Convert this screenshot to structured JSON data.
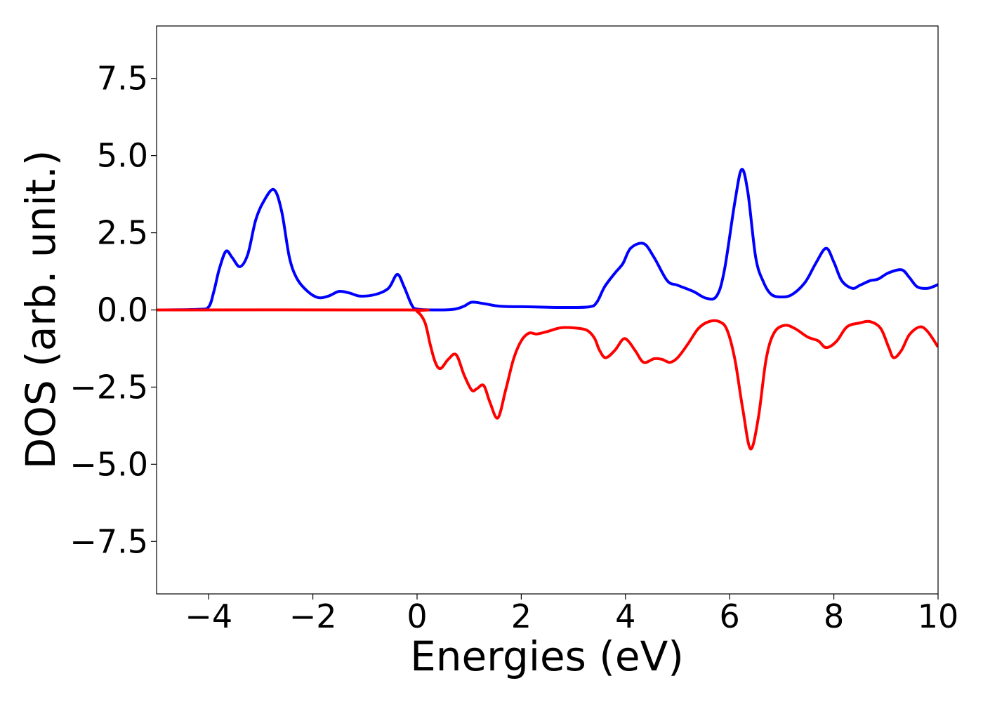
{
  "chart_data": {
    "type": "line",
    "title": "",
    "xlabel": "Energies (eV)",
    "ylabel": "DOS (arb. unit.)",
    "xlim": [
      -5,
      10
    ],
    "ylim": [
      -9.2,
      9.2
    ],
    "xticks": [
      {
        "value": -4,
        "label": "−4"
      },
      {
        "value": -2,
        "label": "−2"
      },
      {
        "value": 0,
        "label": "0"
      },
      {
        "value": 2,
        "label": "2"
      },
      {
        "value": 4,
        "label": "4"
      },
      {
        "value": 6,
        "label": "6"
      },
      {
        "value": 8,
        "label": "8"
      },
      {
        "value": 10,
        "label": "10"
      }
    ],
    "yticks": [
      {
        "value": 7.5,
        "label": "7.5"
      },
      {
        "value": 5.0,
        "label": "5.0"
      },
      {
        "value": 2.5,
        "label": "2.5"
      },
      {
        "value": 0.0,
        "label": "0.0"
      },
      {
        "value": -2.5,
        "label": "−2.5"
      },
      {
        "value": -5.0,
        "label": "−5.0"
      },
      {
        "value": -7.5,
        "label": "−7.5"
      }
    ],
    "grid": false,
    "legend": false,
    "series": [
      {
        "color": "#0000ff",
        "points": [
          [
            -5.0,
            0.0
          ],
          [
            -4.2,
            0.02
          ],
          [
            -4.0,
            0.1
          ],
          [
            -3.9,
            0.6
          ],
          [
            -3.8,
            1.3
          ],
          [
            -3.67,
            1.9
          ],
          [
            -3.55,
            1.7
          ],
          [
            -3.4,
            1.4
          ],
          [
            -3.25,
            1.8
          ],
          [
            -3.1,
            2.9
          ],
          [
            -2.95,
            3.5
          ],
          [
            -2.75,
            3.9
          ],
          [
            -2.6,
            3.2
          ],
          [
            -2.45,
            1.7
          ],
          [
            -2.3,
            1.0
          ],
          [
            -2.1,
            0.6
          ],
          [
            -1.9,
            0.4
          ],
          [
            -1.7,
            0.45
          ],
          [
            -1.5,
            0.6
          ],
          [
            -1.3,
            0.55
          ],
          [
            -1.1,
            0.45
          ],
          [
            -0.8,
            0.5
          ],
          [
            -0.55,
            0.7
          ],
          [
            -0.38,
            1.15
          ],
          [
            -0.25,
            0.75
          ],
          [
            -0.1,
            0.15
          ],
          [
            0.0,
            0.03
          ],
          [
            0.3,
            0.0
          ],
          [
            0.7,
            0.02
          ],
          [
            0.9,
            0.12
          ],
          [
            1.05,
            0.25
          ],
          [
            1.3,
            0.2
          ],
          [
            1.6,
            0.12
          ],
          [
            2.2,
            0.1
          ],
          [
            2.8,
            0.08
          ],
          [
            3.3,
            0.1
          ],
          [
            3.45,
            0.25
          ],
          [
            3.6,
            0.75
          ],
          [
            3.8,
            1.2
          ],
          [
            3.95,
            1.5
          ],
          [
            4.1,
            2.0
          ],
          [
            4.35,
            2.15
          ],
          [
            4.55,
            1.7
          ],
          [
            4.8,
            0.95
          ],
          [
            5.0,
            0.8
          ],
          [
            5.3,
            0.6
          ],
          [
            5.55,
            0.38
          ],
          [
            5.75,
            0.45
          ],
          [
            5.9,
            1.3
          ],
          [
            6.1,
            3.5
          ],
          [
            6.23,
            4.55
          ],
          [
            6.35,
            3.8
          ],
          [
            6.5,
            1.7
          ],
          [
            6.65,
            0.9
          ],
          [
            6.8,
            0.5
          ],
          [
            7.0,
            0.42
          ],
          [
            7.2,
            0.5
          ],
          [
            7.45,
            0.9
          ],
          [
            7.65,
            1.5
          ],
          [
            7.85,
            2.0
          ],
          [
            8.0,
            1.55
          ],
          [
            8.15,
            0.95
          ],
          [
            8.35,
            0.7
          ],
          [
            8.5,
            0.8
          ],
          [
            8.7,
            0.95
          ],
          [
            8.85,
            1.0
          ],
          [
            9.05,
            1.2
          ],
          [
            9.3,
            1.3
          ],
          [
            9.45,
            1.05
          ],
          [
            9.6,
            0.75
          ],
          [
            9.8,
            0.7
          ],
          [
            10.0,
            0.82
          ]
        ]
      },
      {
        "color": "#ff0000",
        "points": [
          [
            -5.0,
            0.0
          ],
          [
            -0.2,
            0.0
          ],
          [
            0.0,
            -0.05
          ],
          [
            0.15,
            -0.4
          ],
          [
            0.25,
            -1.1
          ],
          [
            0.35,
            -1.7
          ],
          [
            0.45,
            -1.9
          ],
          [
            0.6,
            -1.6
          ],
          [
            0.75,
            -1.45
          ],
          [
            0.9,
            -2.1
          ],
          [
            1.05,
            -2.6
          ],
          [
            1.15,
            -2.55
          ],
          [
            1.28,
            -2.45
          ],
          [
            1.4,
            -3.0
          ],
          [
            1.55,
            -3.5
          ],
          [
            1.7,
            -2.6
          ],
          [
            1.85,
            -1.6
          ],
          [
            2.0,
            -1.0
          ],
          [
            2.15,
            -0.75
          ],
          [
            2.3,
            -0.78
          ],
          [
            2.5,
            -0.7
          ],
          [
            2.75,
            -0.58
          ],
          [
            3.0,
            -0.58
          ],
          [
            3.25,
            -0.65
          ],
          [
            3.4,
            -0.9
          ],
          [
            3.5,
            -1.3
          ],
          [
            3.62,
            -1.55
          ],
          [
            3.8,
            -1.3
          ],
          [
            3.95,
            -0.95
          ],
          [
            4.05,
            -1.0
          ],
          [
            4.2,
            -1.35
          ],
          [
            4.35,
            -1.7
          ],
          [
            4.55,
            -1.58
          ],
          [
            4.7,
            -1.6
          ],
          [
            4.85,
            -1.7
          ],
          [
            5.0,
            -1.55
          ],
          [
            5.2,
            -1.1
          ],
          [
            5.4,
            -0.6
          ],
          [
            5.6,
            -0.38
          ],
          [
            5.8,
            -0.38
          ],
          [
            5.95,
            -0.65
          ],
          [
            6.1,
            -1.6
          ],
          [
            6.25,
            -3.2
          ],
          [
            6.4,
            -4.5
          ],
          [
            6.55,
            -3.5
          ],
          [
            6.7,
            -1.6
          ],
          [
            6.85,
            -0.75
          ],
          [
            7.05,
            -0.5
          ],
          [
            7.25,
            -0.6
          ],
          [
            7.5,
            -0.88
          ],
          [
            7.7,
            -1.0
          ],
          [
            7.85,
            -1.22
          ],
          [
            8.05,
            -1.02
          ],
          [
            8.25,
            -0.55
          ],
          [
            8.5,
            -0.42
          ],
          [
            8.7,
            -0.38
          ],
          [
            8.9,
            -0.6
          ],
          [
            9.05,
            -1.2
          ],
          [
            9.15,
            -1.55
          ],
          [
            9.3,
            -1.3
          ],
          [
            9.45,
            -0.8
          ],
          [
            9.65,
            -0.55
          ],
          [
            9.8,
            -0.7
          ],
          [
            10.0,
            -1.2
          ]
        ]
      }
    ]
  }
}
